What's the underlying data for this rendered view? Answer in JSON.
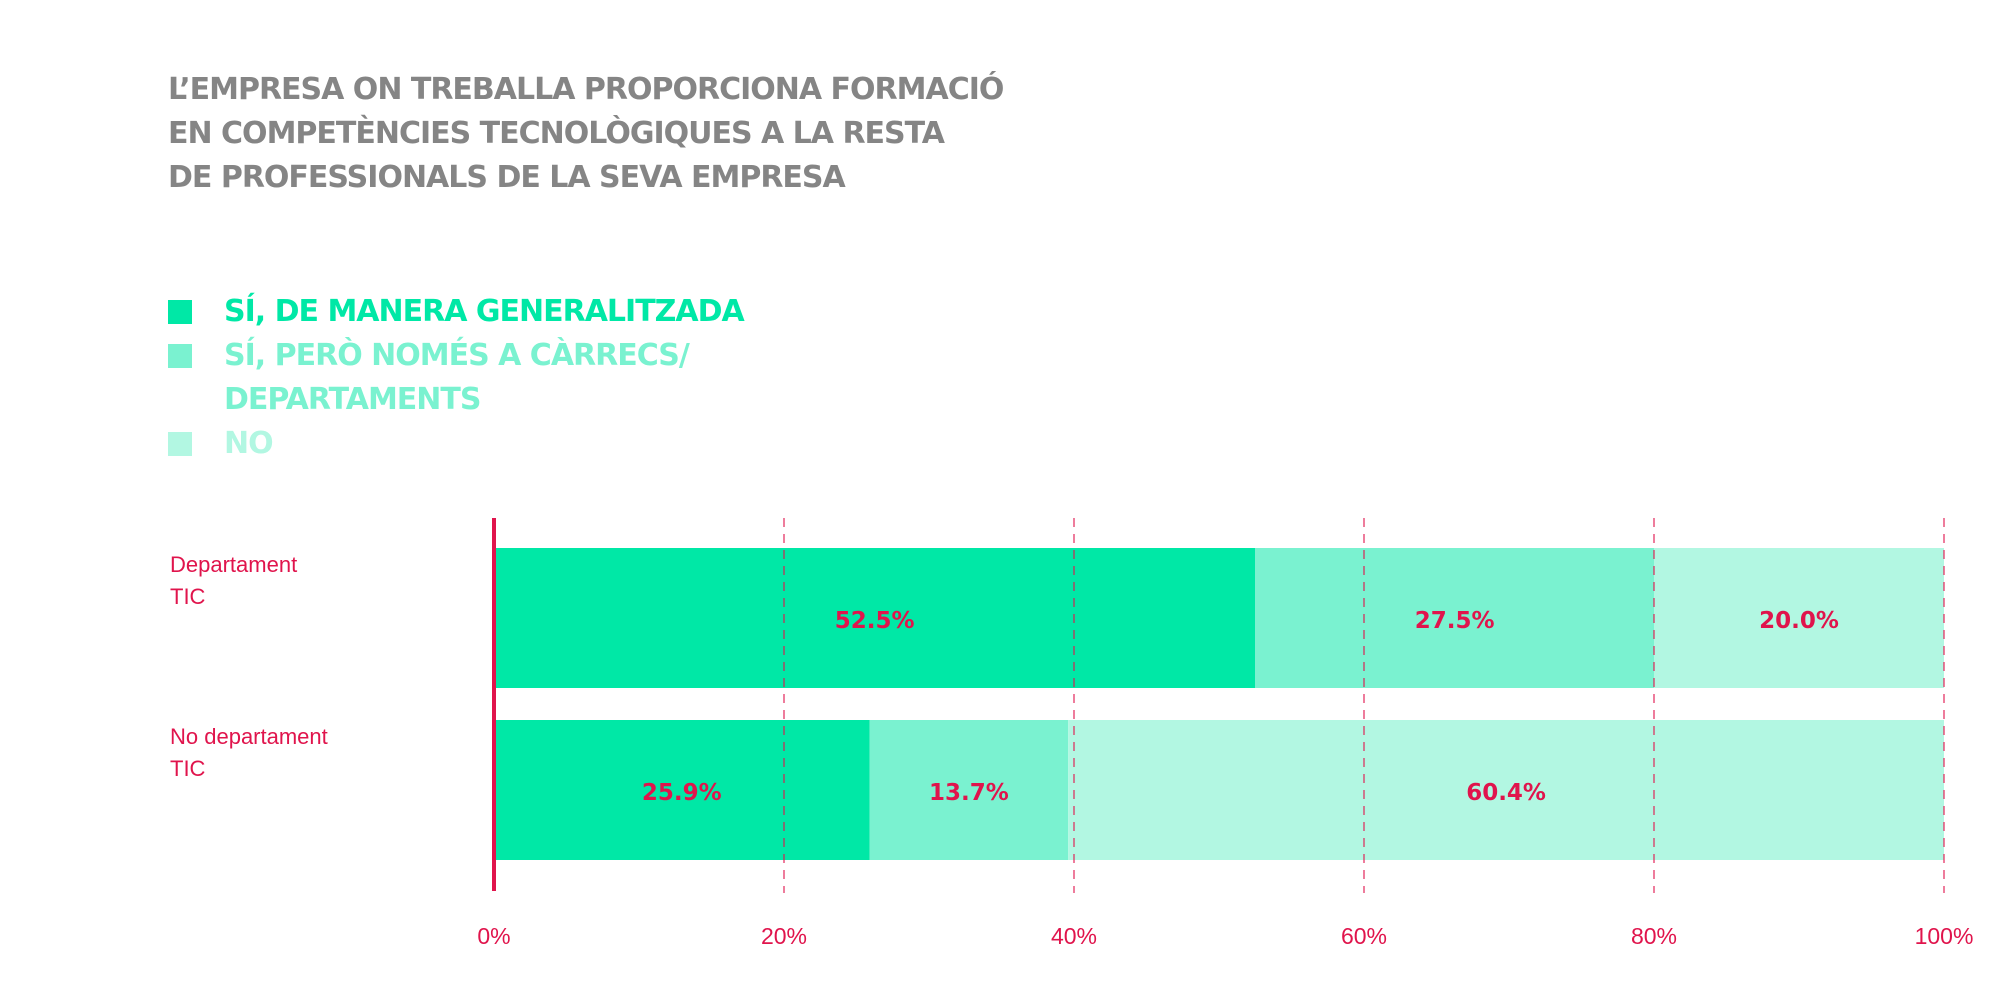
{
  "title_lines": [
    "L’EMPRESA ON TREBALLA PROPORCIONA FORMACIÓ",
    "EN COMPETÈNCIES TECNOLÒGIQUES A LA RESTA",
    "DE PROFESSIONALS DE LA SEVA EMPRESA"
  ],
  "legend": [
    {
      "label": "SÍ, DE MANERA GENERALITZADA",
      "color": "#00E8A6"
    },
    {
      "label": "SÍ, PERÒ NOMÉS A CÀRRECS/ DEPARTAMENTS",
      "color": "#7AF2D0"
    },
    {
      "label": "NO",
      "color": "#B2F7E2"
    }
  ],
  "colors": {
    "accent": "#E0144C",
    "label_text": "#E0144C"
  },
  "chart_data": {
    "type": "bar",
    "orientation": "horizontal",
    "stacked": true,
    "categories": [
      "Departament TIC",
      "No departament TIC"
    ],
    "series": [
      {
        "name": "SÍ, DE MANERA GENERALITZADA",
        "values": [
          52.5,
          25.9
        ],
        "labels": [
          "52.5%",
          "25.9%"
        ]
      },
      {
        "name": "SÍ, PERÒ NOMÉS A CÀRRECS/ DEPARTAMENTS",
        "values": [
          27.5,
          13.7
        ],
        "labels": [
          "27.5%",
          "13.7%"
        ]
      },
      {
        "name": "NO",
        "values": [
          20.0,
          60.4
        ],
        "labels": [
          "20.0%",
          "60.4%"
        ]
      }
    ],
    "xlim": [
      0,
      100
    ],
    "xticks": [
      0,
      20,
      40,
      60,
      80,
      100
    ],
    "xtick_labels": [
      "0%",
      "20%",
      "40%",
      "60%",
      "80%",
      "100%"
    ],
    "grid": "vertical dashed",
    "legend_position": "top-left"
  }
}
